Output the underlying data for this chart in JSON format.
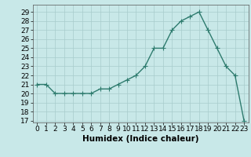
{
  "x": [
    0,
    1,
    2,
    3,
    4,
    5,
    6,
    7,
    8,
    9,
    10,
    11,
    12,
    13,
    14,
    15,
    16,
    17,
    18,
    19,
    20,
    21,
    22,
    23
  ],
  "y": [
    21,
    21,
    20,
    20,
    20,
    20,
    20,
    20.5,
    20.5,
    21,
    21.5,
    22,
    23,
    25,
    25,
    27,
    28,
    28.5,
    29,
    27,
    25,
    23,
    22,
    17
  ],
  "line_color": "#2e7b6e",
  "marker": "+",
  "marker_size": 4,
  "background_color": "#c8e8e8",
  "grid_color": "#a8cccc",
  "xlabel": "Humidex (Indice chaleur)",
  "xlim": [
    -0.5,
    23.5
  ],
  "ylim": [
    16.8,
    29.8
  ],
  "yticks": [
    17,
    18,
    19,
    20,
    21,
    22,
    23,
    24,
    25,
    26,
    27,
    28,
    29
  ],
  "xticks": [
    0,
    1,
    2,
    3,
    4,
    5,
    6,
    7,
    8,
    9,
    10,
    11,
    12,
    13,
    14,
    15,
    16,
    17,
    18,
    19,
    20,
    21,
    22,
    23
  ],
  "tick_label_fontsize": 6.5,
  "xlabel_fontsize": 7.5,
  "line_width": 1.0,
  "marker_edge_width": 0.8
}
